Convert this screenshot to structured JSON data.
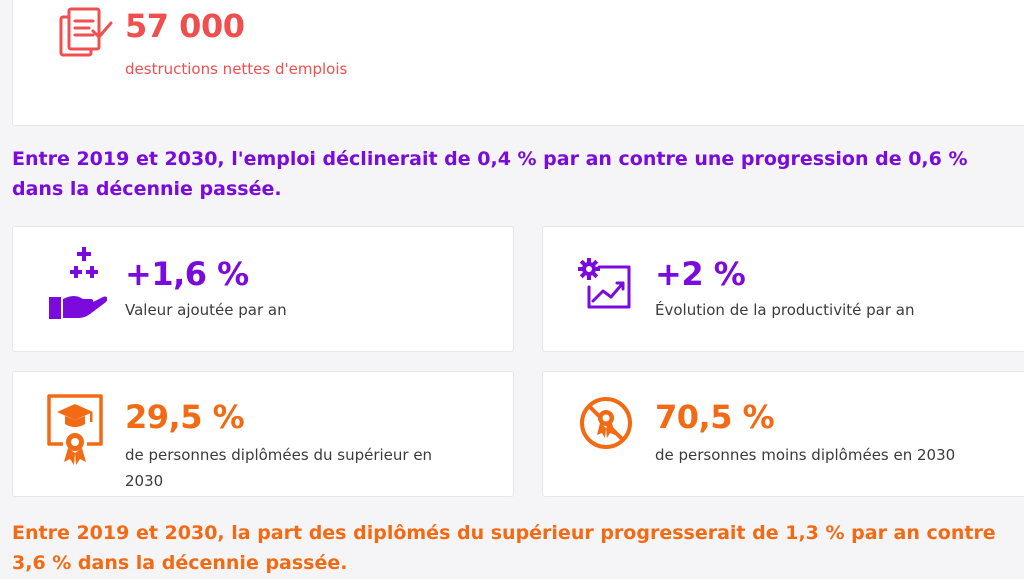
{
  "colors": {
    "red": "#ef4f4f",
    "purple": "#7a0bdc",
    "orange": "#f26a13"
  },
  "top_card": {
    "icon": "document-checklist-icon",
    "value": "57 000",
    "label": "destructions nettes d'emplois"
  },
  "lead_employment": "Entre 2019 et 2030, l'emploi déclinerait de 0,4 % par an contre une progression de 0,6 % dans la décennie passée.",
  "stats": [
    {
      "icon": "hand-plus-icon",
      "value": "+1,6 %",
      "label": "Valeur ajoutée par an"
    },
    {
      "icon": "gear-chart-icon",
      "value": "+2 %",
      "label": "Évolution de la productivité par an"
    },
    {
      "icon": "diploma-certificate-icon",
      "value": "29,5 %",
      "label": "de personnes diplômées du supérieur en 2030"
    },
    {
      "icon": "no-diploma-badge-icon",
      "value": "70,5 %",
      "label": "de personnes moins diplômées en 2030"
    }
  ],
  "lead_graduates": "Entre 2019 et 2030, la part des diplômés du supérieur progresserait de 1,3 % par an contre 3,6 % dans la décennie passée."
}
